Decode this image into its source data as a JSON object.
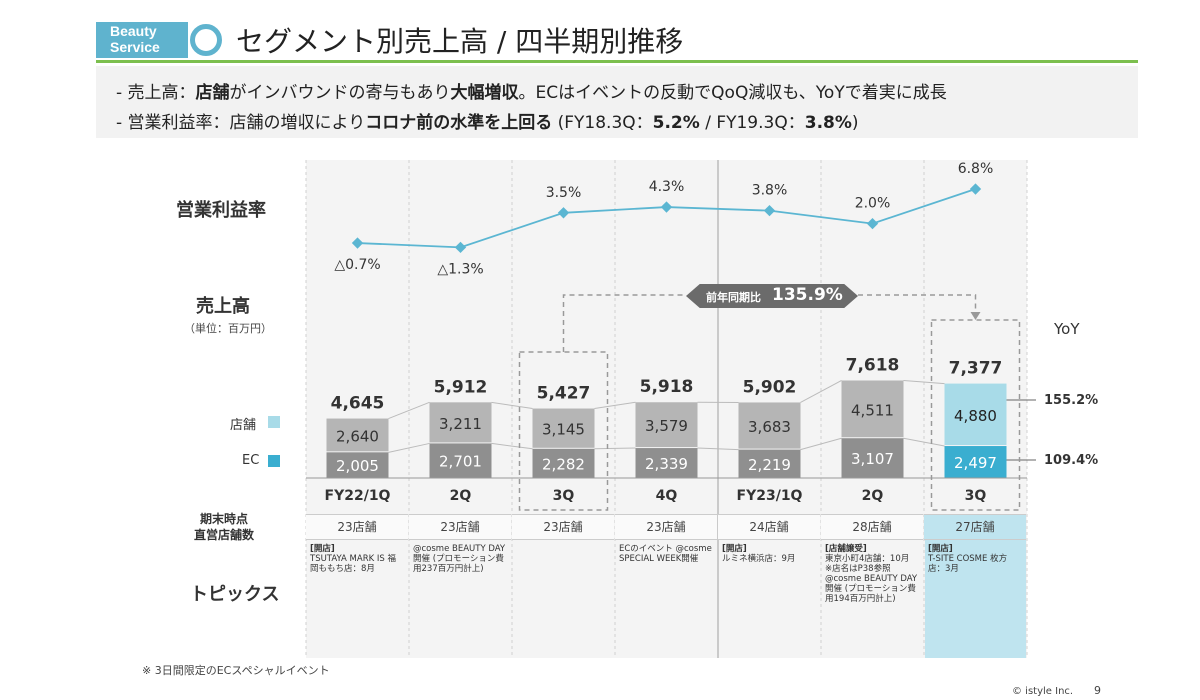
{
  "header": {
    "badge_line1": "Beauty",
    "badge_line2": "Service",
    "title": "セグメント別売上高 / 四半期別推移"
  },
  "summary": {
    "line1": {
      "pre": "- 売上高：",
      "b1": "店舗",
      "mid1": "がインバウンドの寄与もあり",
      "b2": "大幅増収",
      "rest": "。ECはイベントの反動でQoQ減収も、YoYで着実に成長"
    },
    "line2": {
      "pre": "- 営業利益率：店舗の増収により",
      "b1": "コロナ前の水準を上回る",
      "mid": " (FY18.3Q：",
      "b2": "5.2%",
      "mid2": " / FY19.3Q：",
      "b3": "3.8%",
      "end": ")"
    }
  },
  "labels": {
    "margin": "営業利益率",
    "sales": "売上高",
    "unit": "（単位：百万円）",
    "store": "店舗",
    "ec": "EC",
    "yoy": "YoY",
    "stores_title_1": "期末時点",
    "stores_title_2": "直営店舗数",
    "topics": "トピックス",
    "compare_prefix": "前年同期比",
    "compare_value": "135.9%",
    "yoy_store": "155.2%",
    "yoy_ec": "109.4%"
  },
  "chart_data": {
    "type": "bar",
    "categories": [
      "FY22/1Q",
      "2Q",
      "3Q",
      "4Q",
      "FY23/1Q",
      "2Q",
      "3Q"
    ],
    "series": [
      {
        "name": "店舗",
        "values": [
          2640,
          3211,
          3145,
          3579,
          3683,
          4511,
          4880
        ]
      },
      {
        "name": "EC",
        "values": [
          2005,
          2701,
          2282,
          2339,
          2219,
          3107,
          2497
        ]
      }
    ],
    "totals": [
      4645,
      5912,
      5427,
      5918,
      5902,
      7618,
      7377
    ],
    "totals_labels": [
      "4,645",
      "5,912",
      "5,427",
      "5,918",
      "5,902",
      "7,618",
      "7,377"
    ],
    "store_labels": [
      "2,640",
      "3,211",
      "3,145",
      "3,579",
      "3,683",
      "4,511",
      "4,880"
    ],
    "ec_labels": [
      "2,005",
      "2,701",
      "2,282",
      "2,339",
      "2,219",
      "3,107",
      "2,497"
    ],
    "margin": {
      "values": [
        -0.7,
        -1.3,
        3.5,
        4.3,
        3.8,
        2.0,
        6.8
      ],
      "labels": [
        "△0.7%",
        "△1.3%",
        "3.5%",
        "4.3%",
        "3.8%",
        "2.0%",
        "6.8%"
      ]
    },
    "stores": [
      "23店舗",
      "23店舗",
      "23店舗",
      "23店舗",
      "24店舗",
      "28店舗",
      "27店舗"
    ],
    "colors": {
      "store": "#b5b5b5",
      "ec": "#8f8f8f",
      "store_current": "#a8dbe8",
      "ec_current": "#3aaed0",
      "line": "#5bb6d2",
      "highlight": "#bfe4ef"
    }
  },
  "topics": [
    {
      "tag": "[開店]",
      "text": "TSUTAYA MARK IS 福岡ももち店：8月"
    },
    {
      "tag": "",
      "text": "@cosme BEAUTY DAY開催 (プロモーション費用237百万円計上)"
    },
    {
      "tag": "",
      "text": ""
    },
    {
      "tag": "",
      "text": "ECのイベント @cosme SPECIAL WEEK開催"
    },
    {
      "tag": "[開店]",
      "text": "ルミネ横浜店：9月"
    },
    {
      "tag": "[店舗譲受]",
      "text": "東京小町4店舗：10月 ※店名はP38参照 @cosme BEAUTY DAY開催 (プロモーション費用194百万円計上)"
    },
    {
      "tag": "[開店]",
      "text": "T-SITE COSME 枚方店：3月"
    }
  ],
  "footer": {
    "note": "※ 3日間限定のECスペシャルイベント",
    "copyright": "© istyle Inc.",
    "page": "9"
  }
}
